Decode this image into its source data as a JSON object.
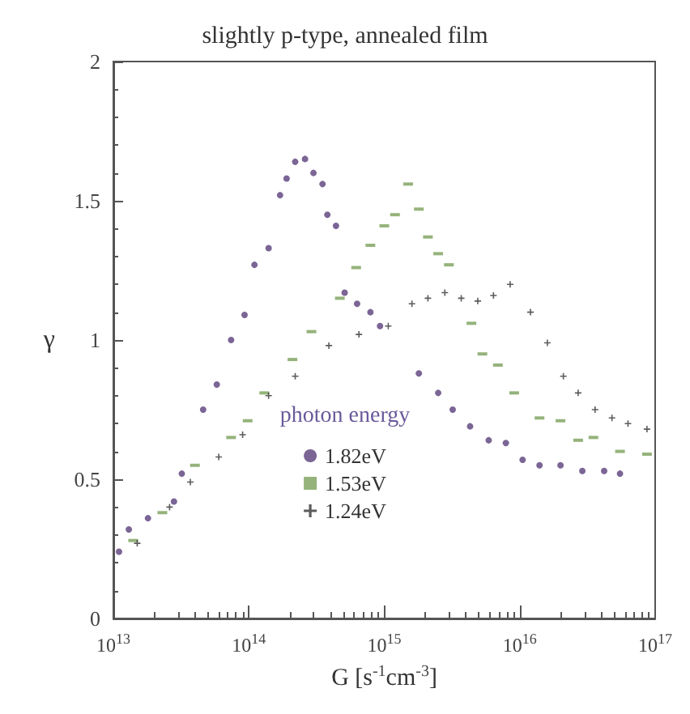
{
  "chart_data": {
    "type": "scatter",
    "title": "slightly p-type, annealed film",
    "xlabel": "G [s$^{-1}$cm$^{-3}$]",
    "ylabel": "γ",
    "legend_title": "photon energy",
    "log": "x",
    "xlim": [
      10000000000000.0,
      1e+17
    ],
    "xticks": [
      {
        "value": 10000000000000.0,
        "label": "10$^{13}$"
      },
      {
        "value": 100000000000000.0,
        "label": "10$^{14}$"
      },
      {
        "value": 1000000000000000.0,
        "label": "10$^{15}$"
      },
      {
        "value": 1e+16,
        "label": "10$^{16}$"
      },
      {
        "value": 1e+17,
        "label": "10$^{17}$"
      }
    ],
    "ylim": [
      0,
      2
    ],
    "yticks": [
      0,
      0.5,
      1,
      1.5,
      2
    ],
    "grid": false,
    "legend": "bottom",
    "series": [
      {
        "name": "1.82eV",
        "color": "#5a3f7a",
        "marker": "circle",
        "x": [
          11000000000000.0,
          13000000000000.0,
          18000000000000.0,
          28000000000000.0,
          32000000000000.0,
          46000000000000.0,
          58000000000000.0,
          74000000000000.0,
          93000000000000.0,
          110000000000000.0,
          140000000000000.0,
          170000000000000.0,
          190000000000000.0,
          220000000000000.0,
          260000000000000.0,
          300000000000000.0,
          350000000000000.0,
          380000000000000.0,
          440000000000000.0,
          510000000000000.0,
          630000000000000.0,
          790000000000000.0,
          930000000000000.0,
          1800000000000000.0,
          2500000000000000.0,
          3200000000000000.0,
          4300000000000000.0,
          5900000000000000.0,
          7900000000000000.0,
          1.05e+16,
          1.4e+16,
          2e+16,
          2.9e+16,
          4.2e+16,
          5.5e+16
        ],
        "values": [
          0.24,
          0.32,
          0.36,
          0.42,
          0.52,
          0.75,
          0.84,
          1.0,
          1.09,
          1.27,
          1.33,
          1.52,
          1.58,
          1.64,
          1.65,
          1.6,
          1.56,
          1.45,
          1.41,
          1.17,
          1.13,
          1.1,
          1.05,
          0.88,
          0.81,
          0.75,
          0.69,
          0.64,
          0.63,
          0.57,
          0.55,
          0.55,
          0.53,
          0.53,
          0.52
        ]
      },
      {
        "name": "1.53eV",
        "color": "#7aa05a",
        "marker": "square",
        "x": [
          14000000000000.0,
          23000000000000.0,
          40000000000000.0,
          74000000000000.0,
          98000000000000.0,
          130000000000000.0,
          210000000000000.0,
          290000000000000.0,
          470000000000000.0,
          620000000000000.0,
          790000000000000.0,
          1000000000000000.0,
          1200000000000000.0,
          1500000000000000.0,
          1800000000000000.0,
          2100000000000000.0,
          2500000000000000.0,
          3000000000000000.0,
          4400000000000000.0,
          5300000000000000.0,
          6900000000000000.0,
          9100000000000000.0,
          1.4e+16,
          2e+16,
          2.7e+16,
          3.5e+16,
          5.5e+16,
          8.7e+16
        ],
        "values": [
          0.28,
          0.38,
          0.55,
          0.65,
          0.71,
          0.81,
          0.93,
          1.03,
          1.15,
          1.26,
          1.34,
          1.41,
          1.45,
          1.56,
          1.47,
          1.37,
          1.31,
          1.27,
          1.06,
          0.95,
          0.91,
          0.81,
          0.72,
          0.71,
          0.64,
          0.65,
          0.6,
          0.59
        ]
      },
      {
        "name": "1.24eV",
        "color": "#333333",
        "marker": "cross",
        "x": [
          15000000000000.0,
          26000000000000.0,
          37000000000000.0,
          60000000000000.0,
          90000000000000.0,
          140000000000000.0,
          220000000000000.0,
          390000000000000.0,
          650000000000000.0,
          1070000000000000.0,
          1600000000000000.0,
          2100000000000000.0,
          2800000000000000.0,
          3700000000000000.0,
          4900000000000000.0,
          6400000000000000.0,
          8500000000000000.0,
          1.2e+16,
          1.6e+16,
          2.1e+16,
          2.7e+16,
          3.6e+16,
          4.8e+16,
          6.3e+16,
          8.7e+16
        ],
        "values": [
          0.27,
          0.4,
          0.49,
          0.58,
          0.66,
          0.8,
          0.87,
          0.98,
          1.02,
          1.05,
          1.13,
          1.15,
          1.17,
          1.15,
          1.14,
          1.16,
          1.2,
          1.1,
          0.99,
          0.87,
          0.81,
          0.75,
          0.72,
          0.7,
          0.68
        ]
      }
    ]
  }
}
